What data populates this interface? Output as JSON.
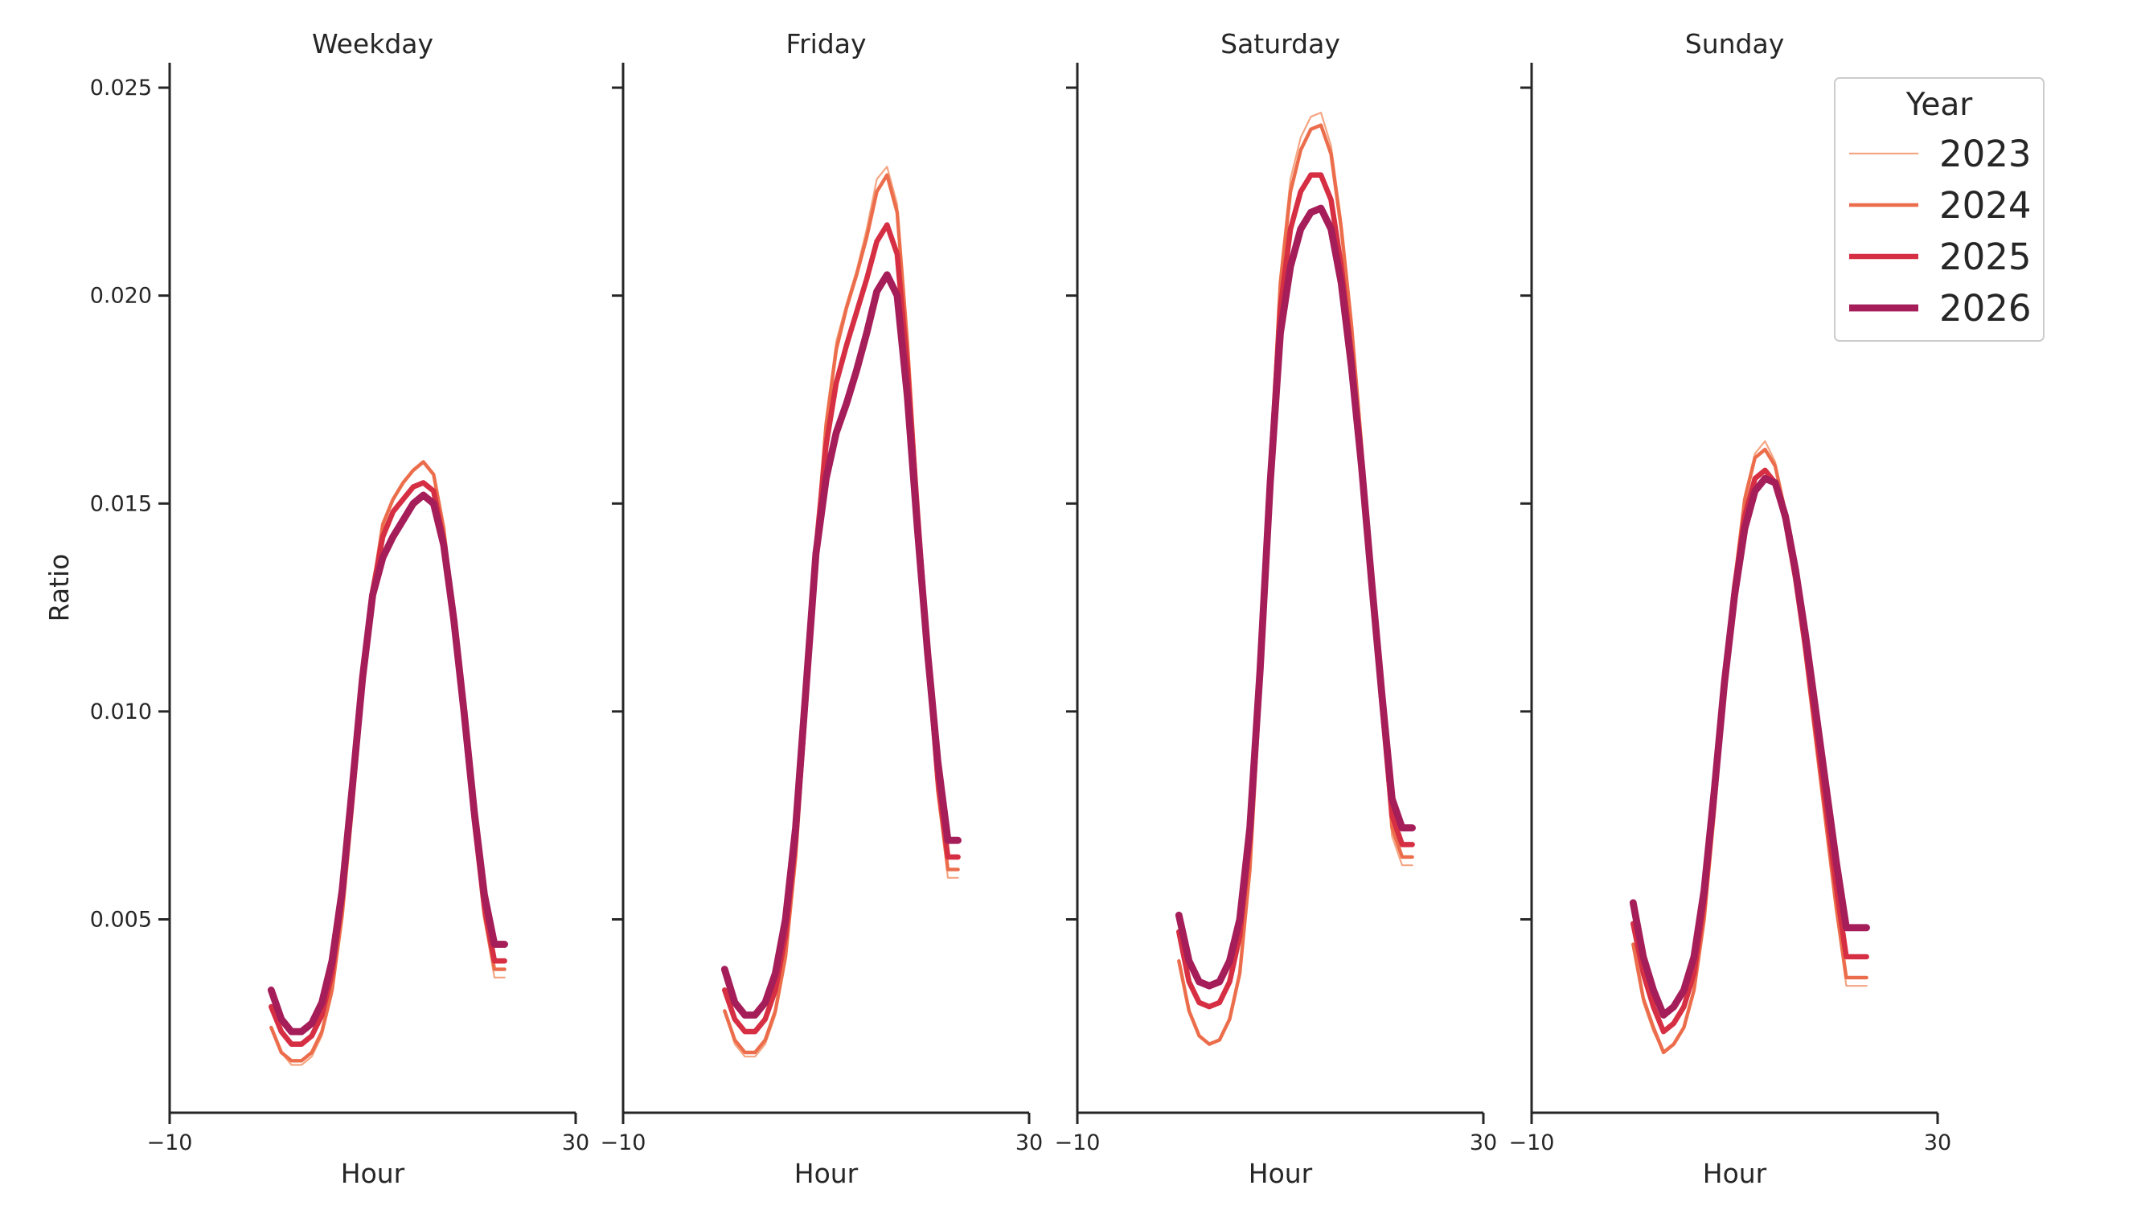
{
  "chart_data": {
    "type": "line",
    "ylabel": "Ratio",
    "xlabel": "Hour",
    "xlim": [
      -10,
      30
    ],
    "ylim": [
      0.00035,
      0.0256
    ],
    "x_ticks": [
      -10,
      30
    ],
    "x_tick_labels": [
      "−10",
      "30"
    ],
    "y_ticks": [
      0.005,
      0.01,
      0.015,
      0.02,
      0.025
    ],
    "y_tick_labels": [
      "0.005",
      "0.010",
      "0.015",
      "0.020",
      "0.025"
    ],
    "grid": false,
    "legend": {
      "title": "Year",
      "placement": "top-right",
      "entries": [
        "2023",
        "2024",
        "2025",
        "2026"
      ]
    },
    "series_colors": {
      "2023": "#f4a582",
      "2024": "#ec6d4b",
      "2025": "#d62f44",
      "2026": "#a51e5a"
    },
    "series_widths": {
      "2023": 1,
      "2024": 2,
      "2025": 3,
      "2026": 4
    },
    "panels": [
      {
        "title": "Weekday",
        "series": [
          {
            "name": "2023",
            "x": [
              0,
              1,
              2,
              3,
              4,
              5,
              6,
              7,
              8,
              9,
              10,
              11,
              12,
              13,
              14,
              15,
              16,
              17,
              18,
              19,
              20,
              21,
              22,
              23
            ],
            "values": [
              0.0024,
              0.0018,
              0.0015,
              0.0015,
              0.0017,
              0.0022,
              0.0032,
              0.005,
              0.0076,
              0.0104,
              0.0128,
              0.0144,
              0.0151,
              0.0155,
              0.0158,
              0.016,
              0.0157,
              0.0143,
              0.0122,
              0.0098,
              0.0072,
              0.005,
              0.0036,
              0.0036
            ]
          },
          {
            "name": "2024",
            "x": [
              0,
              1,
              2,
              3,
              4,
              5,
              6,
              7,
              8,
              9,
              10,
              11,
              12,
              13,
              14,
              15,
              16,
              17,
              18,
              19,
              20,
              21,
              22,
              23
            ],
            "values": [
              0.0024,
              0.0018,
              0.0016,
              0.0016,
              0.0018,
              0.0023,
              0.0033,
              0.0051,
              0.0077,
              0.0105,
              0.0129,
              0.0145,
              0.0151,
              0.0155,
              0.0158,
              0.016,
              0.0157,
              0.0144,
              0.0123,
              0.0099,
              0.0073,
              0.0051,
              0.0038,
              0.0038
            ]
          },
          {
            "name": "2025",
            "x": [
              0,
              1,
              2,
              3,
              4,
              5,
              6,
              7,
              8,
              9,
              10,
              11,
              12,
              13,
              14,
              15,
              16,
              17,
              18,
              19,
              20,
              21,
              22,
              23
            ],
            "values": [
              0.0029,
              0.0023,
              0.002,
              0.002,
              0.0022,
              0.0027,
              0.0037,
              0.0055,
              0.008,
              0.0107,
              0.0129,
              0.0142,
              0.0148,
              0.0151,
              0.0154,
              0.0155,
              0.0153,
              0.0141,
              0.0122,
              0.0099,
              0.0074,
              0.0053,
              0.004,
              0.004
            ]
          },
          {
            "name": "2026",
            "x": [
              0,
              1,
              2,
              3,
              4,
              5,
              6,
              7,
              8,
              9,
              10,
              11,
              12,
              13,
              14,
              15,
              16,
              17,
              18,
              19,
              20,
              21,
              22,
              23
            ],
            "values": [
              0.0033,
              0.0026,
              0.0023,
              0.0023,
              0.0025,
              0.003,
              0.004,
              0.0057,
              0.0082,
              0.0108,
              0.0128,
              0.0137,
              0.0142,
              0.0146,
              0.015,
              0.0152,
              0.015,
              0.014,
              0.0122,
              0.01,
              0.0076,
              0.0056,
              0.0044,
              0.0044
            ]
          }
        ]
      },
      {
        "title": "Friday",
        "series": [
          {
            "name": "2023",
            "x": [
              0,
              1,
              2,
              3,
              4,
              5,
              6,
              7,
              8,
              9,
              10,
              11,
              12,
              13,
              14,
              15,
              16,
              17,
              18,
              19,
              20,
              21,
              22,
              23
            ],
            "values": [
              0.0028,
              0.002,
              0.0017,
              0.0017,
              0.002,
              0.0027,
              0.004,
              0.0064,
              0.0099,
              0.0139,
              0.017,
              0.0189,
              0.0198,
              0.0206,
              0.0216,
              0.0228,
              0.0231,
              0.0222,
              0.019,
              0.015,
              0.0112,
              0.008,
              0.006,
              0.006
            ]
          },
          {
            "name": "2024",
            "x": [
              0,
              1,
              2,
              3,
              4,
              5,
              6,
              7,
              8,
              9,
              10,
              11,
              12,
              13,
              14,
              15,
              16,
              17,
              18,
              19,
              20,
              21,
              22,
              23
            ],
            "values": [
              0.0028,
              0.0021,
              0.0018,
              0.0018,
              0.0021,
              0.0028,
              0.0041,
              0.0065,
              0.01,
              0.0139,
              0.0169,
              0.0187,
              0.0197,
              0.0205,
              0.0214,
              0.0225,
              0.0229,
              0.022,
              0.0189,
              0.015,
              0.0113,
              0.0081,
              0.0062,
              0.0062
            ]
          },
          {
            "name": "2025",
            "x": [
              0,
              1,
              2,
              3,
              4,
              5,
              6,
              7,
              8,
              9,
              10,
              11,
              12,
              13,
              14,
              15,
              16,
              17,
              18,
              19,
              20,
              21,
              22,
              23
            ],
            "values": [
              0.0033,
              0.0026,
              0.0023,
              0.0023,
              0.0026,
              0.0033,
              0.0046,
              0.0069,
              0.0103,
              0.0139,
              0.0164,
              0.0179,
              0.0188,
              0.0196,
              0.0204,
              0.0213,
              0.0217,
              0.021,
              0.0183,
              0.0148,
              0.0114,
              0.0084,
              0.0065,
              0.0065
            ]
          },
          {
            "name": "2026",
            "x": [
              0,
              1,
              2,
              3,
              4,
              5,
              6,
              7,
              8,
              9,
              10,
              11,
              12,
              13,
              14,
              15,
              16,
              17,
              18,
              19,
              20,
              21,
              22,
              23
            ],
            "values": [
              0.0038,
              0.003,
              0.0027,
              0.0027,
              0.003,
              0.0037,
              0.005,
              0.0072,
              0.0105,
              0.0138,
              0.0156,
              0.0167,
              0.0174,
              0.0182,
              0.0191,
              0.0201,
              0.0205,
              0.02,
              0.0176,
              0.0144,
              0.0114,
              0.0088,
              0.0069,
              0.0069
            ]
          }
        ]
      },
      {
        "title": "Saturday",
        "series": [
          {
            "name": "2023",
            "x": [
              0,
              1,
              2,
              3,
              4,
              5,
              6,
              7,
              8,
              9,
              10,
              11,
              12,
              13,
              14,
              15,
              16,
              17,
              18,
              19,
              20,
              21,
              22,
              23
            ],
            "values": [
              0.004,
              0.0028,
              0.0022,
              0.002,
              0.0021,
              0.0026,
              0.0037,
              0.0062,
              0.0106,
              0.016,
              0.0205,
              0.0228,
              0.0238,
              0.0243,
              0.0244,
              0.0236,
              0.0218,
              0.0195,
              0.0165,
              0.0132,
              0.01,
              0.007,
              0.0063,
              0.0063
            ]
          },
          {
            "name": "2024",
            "x": [
              0,
              1,
              2,
              3,
              4,
              5,
              6,
              7,
              8,
              9,
              10,
              11,
              12,
              13,
              14,
              15,
              16,
              17,
              18,
              19,
              20,
              21,
              22,
              23
            ],
            "values": [
              0.004,
              0.0028,
              0.0022,
              0.002,
              0.0021,
              0.0026,
              0.0037,
              0.0062,
              0.0105,
              0.0158,
              0.0203,
              0.0225,
              0.0235,
              0.024,
              0.0241,
              0.0234,
              0.0216,
              0.0193,
              0.0164,
              0.0132,
              0.0101,
              0.0072,
              0.0065,
              0.0065
            ]
          },
          {
            "name": "2025",
            "x": [
              0,
              1,
              2,
              3,
              4,
              5,
              6,
              7,
              8,
              9,
              10,
              11,
              12,
              13,
              14,
              15,
              16,
              17,
              18,
              19,
              20,
              21,
              22,
              23
            ],
            "values": [
              0.0047,
              0.0035,
              0.003,
              0.0029,
              0.003,
              0.0035,
              0.0046,
              0.0069,
              0.0109,
              0.0157,
              0.0197,
              0.0216,
              0.0225,
              0.0229,
              0.0229,
              0.0223,
              0.0207,
              0.0186,
              0.016,
              0.0131,
              0.0102,
              0.0075,
              0.0068,
              0.0068
            ]
          },
          {
            "name": "2026",
            "x": [
              0,
              1,
              2,
              3,
              4,
              5,
              6,
              7,
              8,
              9,
              10,
              11,
              12,
              13,
              14,
              15,
              16,
              17,
              18,
              19,
              20,
              21,
              22,
              23
            ],
            "values": [
              0.0051,
              0.004,
              0.0035,
              0.0034,
              0.0035,
              0.004,
              0.005,
              0.0072,
              0.011,
              0.0155,
              0.0191,
              0.0207,
              0.0216,
              0.022,
              0.0221,
              0.0216,
              0.0203,
              0.0183,
              0.0159,
              0.0131,
              0.0104,
              0.0079,
              0.0072,
              0.0072
            ]
          }
        ]
      },
      {
        "title": "Sunday",
        "series": [
          {
            "name": "2023",
            "x": [
              0,
              1,
              2,
              3,
              4,
              5,
              6,
              7,
              8,
              9,
              10,
              11,
              12,
              13,
              14,
              15,
              16,
              17,
              18,
              19,
              20,
              21,
              22,
              23
            ],
            "values": [
              0.0044,
              0.003,
              0.0023,
              0.0018,
              0.002,
              0.0024,
              0.0033,
              0.005,
              0.0076,
              0.0106,
              0.0132,
              0.0152,
              0.0162,
              0.0165,
              0.016,
              0.0148,
              0.0132,
              0.0112,
              0.0092,
              0.0072,
              0.0052,
              0.0034,
              0.0034,
              0.0034
            ]
          },
          {
            "name": "2024",
            "x": [
              0,
              1,
              2,
              3,
              4,
              5,
              6,
              7,
              8,
              9,
              10,
              11,
              12,
              13,
              14,
              15,
              16,
              17,
              18,
              19,
              20,
              21,
              22,
              23
            ],
            "values": [
              0.0044,
              0.0031,
              0.0024,
              0.0018,
              0.002,
              0.0024,
              0.0033,
              0.005,
              0.0076,
              0.0106,
              0.0131,
              0.0151,
              0.0161,
              0.0163,
              0.0159,
              0.0148,
              0.0132,
              0.0113,
              0.0093,
              0.0073,
              0.0053,
              0.0036,
              0.0036,
              0.0036
            ]
          },
          {
            "name": "2025",
            "x": [
              0,
              1,
              2,
              3,
              4,
              5,
              6,
              7,
              8,
              9,
              10,
              11,
              12,
              13,
              14,
              15,
              16,
              17,
              18,
              19,
              20,
              21,
              22,
              23
            ],
            "values": [
              0.0049,
              0.0037,
              0.0029,
              0.0023,
              0.0025,
              0.0029,
              0.0037,
              0.0054,
              0.0079,
              0.0107,
              0.013,
              0.0147,
              0.0156,
              0.0158,
              0.0155,
              0.0146,
              0.0132,
              0.0115,
              0.0096,
              0.0077,
              0.0058,
              0.0041,
              0.0041,
              0.0041
            ]
          },
          {
            "name": "2026",
            "x": [
              0,
              1,
              2,
              3,
              4,
              5,
              6,
              7,
              8,
              9,
              10,
              11,
              12,
              13,
              14,
              15,
              16,
              17,
              18,
              19,
              20,
              21,
              22,
              23
            ],
            "values": [
              0.0054,
              0.0041,
              0.0033,
              0.0027,
              0.0029,
              0.0033,
              0.0041,
              0.0057,
              0.0081,
              0.0107,
              0.0128,
              0.0144,
              0.0153,
              0.0156,
              0.0155,
              0.0147,
              0.0134,
              0.0118,
              0.01,
              0.0082,
              0.0064,
              0.0048,
              0.0048,
              0.0048
            ]
          }
        ]
      }
    ]
  }
}
